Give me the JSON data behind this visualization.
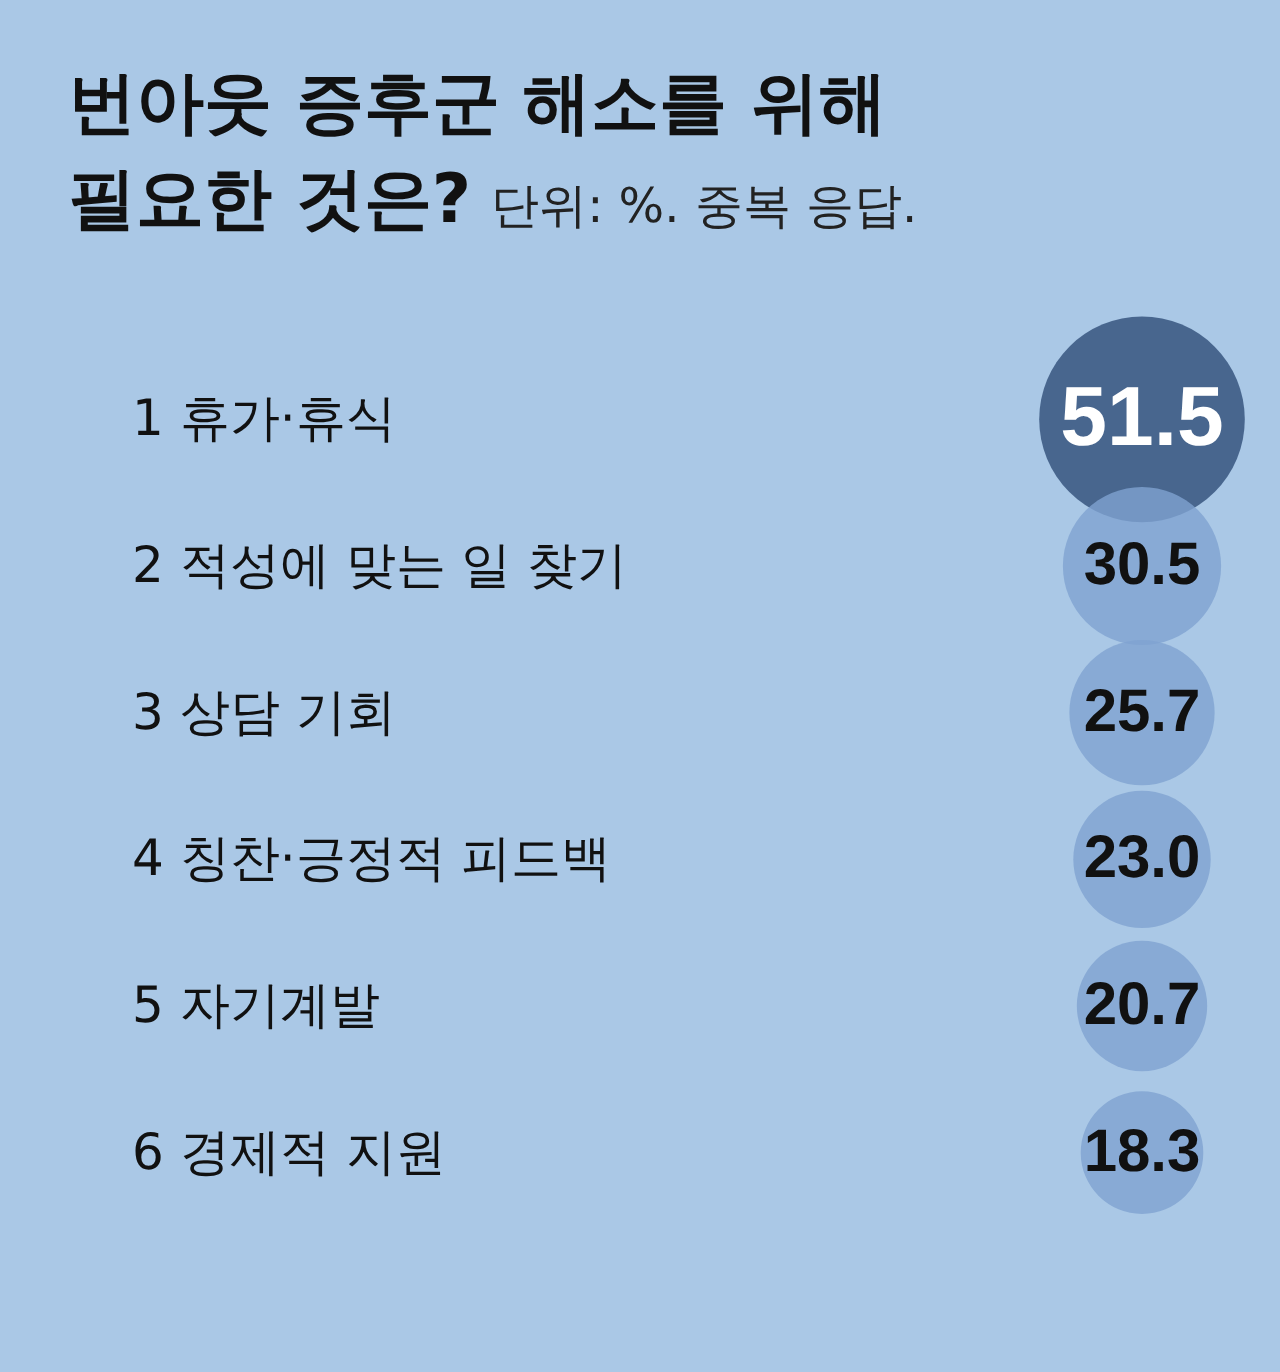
{
  "chart_data": {
    "type": "other",
    "title": "번아웃 증후군 해소를 위해 필요한 것은?",
    "subtitle": "단위: %. 중복 응답.",
    "categories": [
      "1 휴가·휴식",
      "2 적성에 맞는 일 찾기",
      "3 상담 기회",
      "4 칭찬·긍정적 피드백",
      "5 자기계발",
      "6 경제적 지원"
    ],
    "values": [
      51.5,
      30.5,
      25.7,
      23.0,
      20.7,
      18.3
    ],
    "colors": [
      "#2f4d78",
      "#7fa3d1",
      "#7fa3d1",
      "#7fa3d1",
      "#7fa3d1",
      "#7fa3d1"
    ],
    "value_labels": [
      "51.5",
      "30.5",
      "25.7",
      "23.0",
      "20.7",
      "18.3"
    ]
  }
}
